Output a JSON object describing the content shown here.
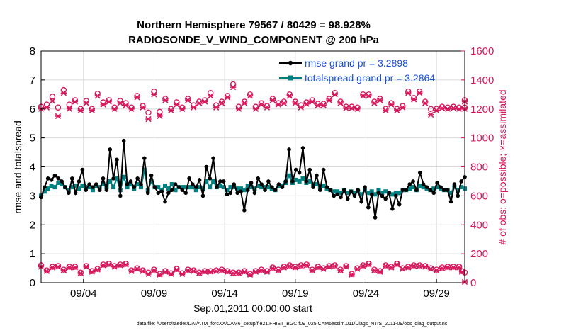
{
  "chart_data": {
    "type": "line",
    "title": "Northern Hemisphere 79567 / 80429 = 98.928%",
    "subtitle": "RADIOSONDE_V_WIND_COMPONENT @ 200 hPa",
    "xlabel": "Sep.01,2011 00:00:00 start",
    "ylabel": "rmse and totalspread",
    "ylabel_right": "# of obs: o=possible; ×=assimilated",
    "footnote": "data file: /Users/raeder/DAI/ATM_forcXX/CAM6_setup/f.e21.FHIST_BGC.f09_025.CAM6assim.011/Diags_NTrS_2011-09/obs_diag_output.nc",
    "x_tick_labels": [
      "09/04",
      "09/09",
      "09/14",
      "09/19",
      "09/24",
      "09/29"
    ],
    "x_tick_days": [
      4,
      9,
      14,
      19,
      24,
      29
    ],
    "xlim": [
      1,
      31
    ],
    "ylim": [
      0,
      8
    ],
    "y_ticks": [
      "0",
      "1",
      "2",
      "3",
      "4",
      "5",
      "6",
      "7",
      "8"
    ],
    "ylim_right": [
      0,
      1600
    ],
    "y_ticks_right": [
      "0",
      "200",
      "400",
      "600",
      "800",
      "1000",
      "1200",
      "1400",
      "1600"
    ],
    "grid": true,
    "legend_position": "top-right",
    "colors": {
      "rmse": "#000000",
      "spread": "#008080",
      "obs": "#d6185d",
      "legend_text": "#1a4fd6"
    },
    "series": [
      {
        "name": "rmse grand pr = 3.2898",
        "axis": "left",
        "values": [
          2.95,
          3.3,
          3.6,
          3.55,
          3.7,
          3.6,
          3.5,
          3.3,
          3.1,
          3.6,
          3.1,
          3.5,
          3.9,
          3.2,
          3.4,
          3.3,
          3.4,
          3.2,
          3.6,
          3.2,
          4.6,
          3.6,
          4.25,
          3.0,
          4.9,
          3.4,
          3.5,
          3.3,
          3.6,
          3.4,
          4.3,
          3.1,
          3.7,
          3.3,
          3.1,
          3.15,
          2.8,
          3.1,
          3.2,
          3.4,
          3.3,
          3.2,
          3.1,
          3.6,
          3.4,
          3.3,
          3.55,
          3.0,
          4.0,
          3.6,
          4.3,
          3.3,
          3.5,
          3.5,
          3.05,
          3.1,
          3.4,
          3.1,
          3.15,
          2.5,
          3.2,
          3.45,
          3.1,
          3.6,
          3.4,
          3.2,
          3.5,
          3.3,
          3.2,
          3.4,
          3.3,
          3.5,
          4.6,
          3.5,
          3.9,
          3.8,
          4.65,
          3.5,
          3.9,
          3.3,
          3.7,
          3.2,
          3.9,
          3.3,
          3.2,
          3.0,
          3.05,
          2.95,
          3.2,
          2.9,
          3.15,
          3.0,
          3.2,
          2.8,
          3.3,
          2.6,
          3.05,
          2.25,
          3.1,
          3.0,
          2.9,
          3.1,
          2.55,
          3.0,
          2.7,
          3.2,
          3.2,
          3.4,
          3.5,
          3.2,
          3.8,
          3.4,
          3.3,
          3.2,
          3.1,
          3.45,
          3.3,
          3.2,
          3.2,
          2.8,
          3.4,
          3.0,
          3.5,
          3.65
        ]
      },
      {
        "name": "totalspread grand pr = 3.2864",
        "axis": "left",
        "values": [
          3.0,
          3.15,
          3.25,
          3.35,
          3.3,
          3.45,
          3.4,
          3.3,
          3.2,
          3.3,
          3.35,
          3.25,
          3.35,
          3.3,
          3.3,
          3.2,
          3.35,
          3.3,
          3.4,
          3.3,
          3.5,
          3.3,
          3.6,
          3.2,
          3.65,
          3.3,
          3.4,
          3.25,
          3.4,
          3.3,
          3.9,
          3.2,
          3.5,
          3.3,
          3.3,
          3.2,
          3.35,
          3.25,
          3.4,
          3.2,
          3.3,
          3.3,
          3.3,
          3.3,
          3.3,
          3.2,
          3.3,
          3.25,
          3.5,
          3.3,
          3.5,
          3.3,
          3.35,
          3.3,
          3.2,
          3.3,
          3.3,
          3.25,
          3.25,
          3.2,
          3.35,
          3.3,
          3.25,
          3.35,
          3.3,
          3.3,
          3.3,
          3.25,
          3.2,
          3.35,
          3.35,
          3.45,
          3.7,
          3.45,
          3.55,
          3.5,
          3.6,
          3.45,
          3.5,
          3.4,
          3.4,
          3.3,
          3.35,
          3.25,
          3.2,
          3.15,
          3.15,
          3.1,
          3.2,
          3.1,
          3.15,
          3.1,
          3.15,
          3.05,
          3.2,
          3.1,
          3.15,
          3.05,
          3.2,
          3.1,
          3.15,
          3.1,
          3.05,
          3.1,
          3.1,
          3.2,
          3.2,
          3.25,
          3.3,
          3.2,
          3.35,
          3.3,
          3.25,
          3.2,
          3.25,
          3.3,
          3.25,
          3.2,
          3.2,
          3.1,
          3.3,
          3.2,
          3.3,
          3.25
        ]
      },
      {
        "name": "possible",
        "axis": "right",
        "values": [
          1215,
          1230,
          1285,
          1210,
          1330,
          1230,
          1260,
          1200,
          1255,
          1200,
          1305,
          1245,
          1260,
          1210,
          1255,
          1240,
          1210,
          1290,
          1220,
          1175,
          1320,
          1180,
          1270,
          1200,
          1245,
          1210,
          1270,
          1225,
          1250,
          1260,
          1310,
          1225,
          1250,
          1290,
          1370,
          1215,
          1250,
          1300,
          1215,
          1240,
          1220,
          1270,
          1240,
          1250,
          1300,
          1250,
          1225,
          1245,
          1260,
          1235,
          1235,
          1270,
          1310,
          1250,
          1215,
          1215,
          1210,
          1300,
          1300,
          1250,
          1270,
          1200,
          1240,
          1200,
          1220,
          1320,
          1275,
          1320,
          1250,
          1200,
          1200,
          1215,
          1210,
          1215,
          1210,
          1260,
          1210
        ],
        "x_days": [
          1.0,
          1.4,
          1.8,
          2.2,
          2.6,
          3.0,
          3.4,
          3.8,
          4.2,
          4.6,
          5.0,
          5.4,
          5.8,
          6.2,
          6.6,
          7.0,
          7.4,
          7.8,
          8.2,
          8.6,
          9.0,
          9.4,
          9.8,
          10.2,
          10.6,
          11.0,
          11.4,
          11.8,
          12.2,
          12.6,
          13.0,
          13.4,
          13.8,
          14.2,
          14.6,
          15.0,
          15.4,
          15.8,
          16.2,
          16.6,
          17.0,
          17.4,
          17.8,
          18.2,
          18.6,
          19.0,
          19.4,
          19.8,
          20.2,
          20.6,
          21.0,
          21.4,
          21.8,
          22.2,
          22.6,
          23.0,
          23.4,
          23.8,
          24.2,
          24.6,
          25.0,
          25.4,
          25.8,
          26.2,
          26.6,
          27.0,
          27.4,
          27.8,
          28.2,
          28.6,
          29.0,
          29.4,
          29.8,
          30.2,
          30.6,
          31.0,
          31.0
        ]
      },
      {
        "name": "assimilated",
        "axis": "right",
        "values": [
          1200,
          1210,
          1255,
          1150,
          1310,
          1200,
          1250,
          1190,
          1240,
          1190,
          1290,
          1230,
          1250,
          1200,
          1240,
          1225,
          1200,
          1280,
          1210,
          1130,
          1300,
          1150,
          1260,
          1190,
          1230,
          1200,
          1260,
          1210,
          1240,
          1250,
          1290,
          1210,
          1240,
          1280,
          1350,
          1200,
          1240,
          1290,
          1200,
          1230,
          1210,
          1260,
          1230,
          1240,
          1290,
          1240,
          1210,
          1235,
          1250,
          1225,
          1225,
          1260,
          1300,
          1240,
          1205,
          1205,
          1200,
          1290,
          1290,
          1240,
          1260,
          1190,
          1230,
          1190,
          1210,
          1310,
          1265,
          1310,
          1240,
          1160,
          1190,
          1205,
          1200,
          1205,
          1200,
          1250,
          1200
        ]
      },
      {
        "name": "possible_low",
        "axis": "right",
        "values": [
          120,
          85,
          110,
          115,
          90,
          110,
          110,
          70,
          115,
          80,
          95,
          125,
          130,
          115,
          125,
          130,
          85,
          100,
          85,
          70,
          90,
          60,
          80,
          65,
          95,
          65,
          90,
          85,
          70,
          80,
          80,
          85,
          90,
          80,
          70,
          70,
          80,
          60,
          80,
          90,
          80,
          105,
          90,
          110,
          120,
          110,
          120,
          125,
          90,
          110,
          100,
          115,
          120,
          90,
          115,
          60,
          100,
          120,
          130,
          90,
          80,
          120,
          110,
          130,
          100,
          110,
          120,
          120,
          115,
          100,
          90,
          105,
          110,
          110,
          110,
          80,
          70
        ],
        "x_days": [
          1.0,
          1.4,
          1.8,
          2.2,
          2.6,
          3.0,
          3.4,
          3.8,
          4.2,
          4.6,
          5.0,
          5.4,
          5.8,
          6.2,
          6.6,
          7.0,
          7.4,
          7.8,
          8.2,
          8.6,
          9.0,
          9.4,
          9.8,
          10.2,
          10.6,
          11.0,
          11.4,
          11.8,
          12.2,
          12.6,
          13.0,
          13.4,
          13.8,
          14.2,
          14.6,
          15.0,
          15.4,
          15.8,
          16.2,
          16.6,
          17.0,
          17.4,
          17.8,
          18.2,
          18.6,
          19.0,
          19.4,
          19.8,
          20.2,
          20.6,
          21.0,
          21.4,
          21.8,
          22.2,
          22.6,
          23.0,
          23.4,
          23.8,
          24.2,
          24.6,
          25.0,
          25.4,
          25.8,
          26.2,
          26.6,
          27.0,
          27.4,
          27.8,
          28.2,
          28.6,
          29.0,
          29.4,
          29.8,
          30.2,
          30.6,
          30.8,
          31.0
        ]
      },
      {
        "name": "assimilated_low",
        "axis": "right",
        "values": [
          110,
          80,
          105,
          110,
          85,
          105,
          105,
          65,
          110,
          75,
          90,
          120,
          125,
          110,
          120,
          125,
          80,
          95,
          80,
          60,
          85,
          55,
          75,
          60,
          90,
          60,
          85,
          80,
          65,
          75,
          75,
          80,
          85,
          75,
          65,
          65,
          75,
          55,
          75,
          85,
          75,
          100,
          85,
          105,
          115,
          105,
          115,
          120,
          85,
          105,
          95,
          110,
          115,
          85,
          110,
          55,
          95,
          115,
          125,
          85,
          75,
          115,
          105,
          125,
          95,
          105,
          115,
          115,
          110,
          95,
          85,
          100,
          105,
          105,
          105,
          75,
          5
        ]
      }
    ]
  }
}
